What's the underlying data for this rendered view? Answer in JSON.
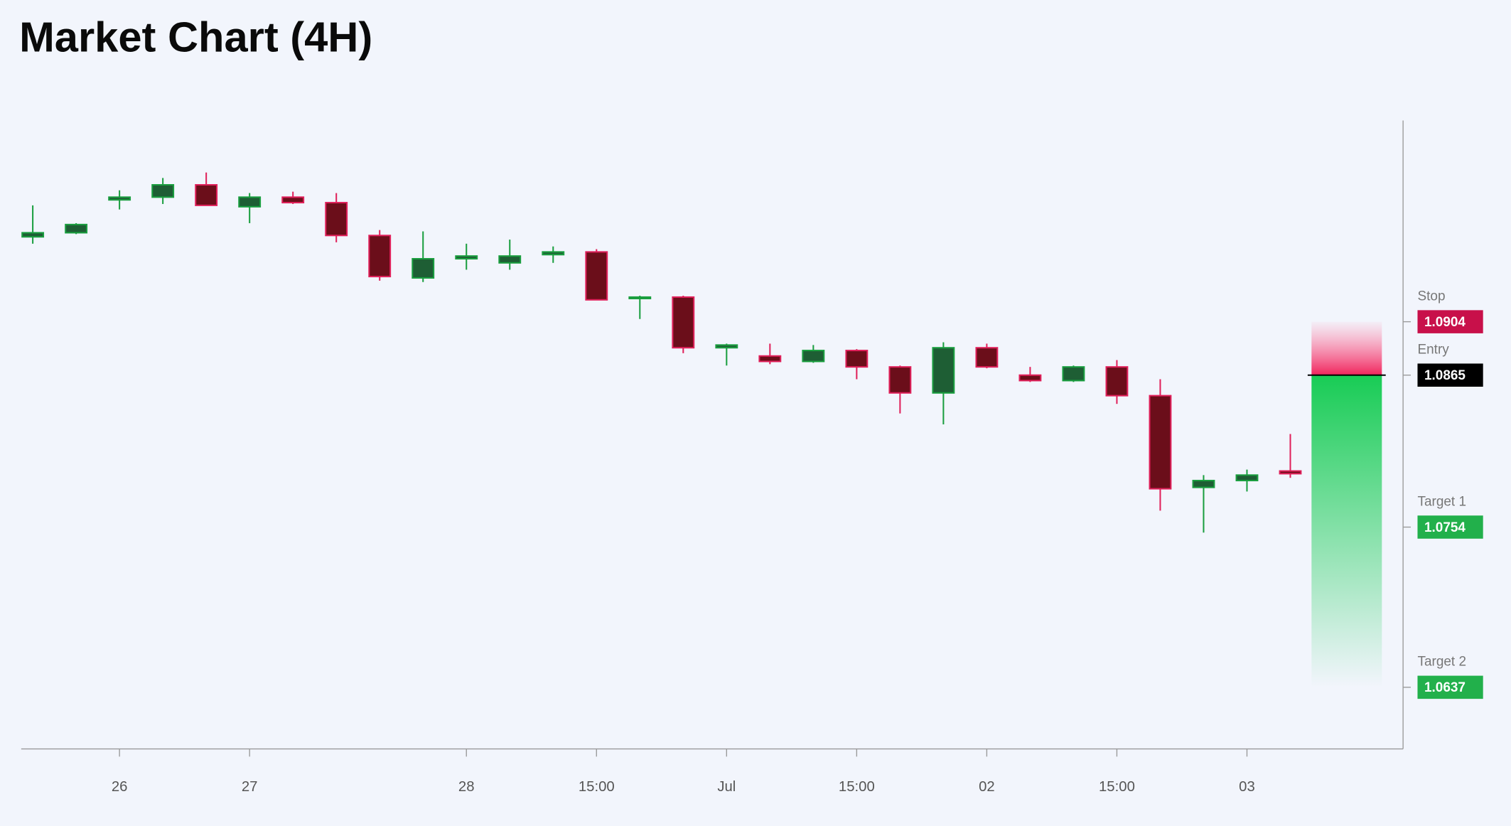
{
  "chart_data": {
    "type": "candlestick",
    "title": "Market Chart (4H)",
    "categories": [
      null,
      null,
      "26",
      null,
      null,
      "27",
      null,
      null,
      null,
      null,
      "28",
      null,
      null,
      "15:00",
      null,
      null,
      "Jul",
      null,
      null,
      "15:00",
      null,
      null,
      "02",
      null,
      null,
      "15:00",
      null,
      null,
      "03",
      null
    ],
    "open": [
      1.0966,
      1.0969,
      1.0993,
      1.0995,
      1.1004,
      1.0988,
      1.0995,
      1.0991,
      1.0967,
      1.0936,
      1.095,
      1.0947,
      1.0953,
      1.0955,
      1.0921,
      1.0922,
      1.0885,
      1.0879,
      1.0875,
      1.0883,
      1.0871,
      1.0852,
      1.0885,
      1.0865,
      1.0861,
      1.0871,
      1.085,
      1.0783,
      1.0788,
      1.0795
    ],
    "high": [
      1.0989,
      1.0976,
      1.1,
      1.1009,
      1.1013,
      1.0998,
      1.0999,
      1.0998,
      1.0971,
      1.097,
      1.0961,
      1.0964,
      1.0959,
      1.0957,
      1.0923,
      1.0923,
      1.0888,
      1.0888,
      1.0887,
      1.0884,
      1.0872,
      1.0889,
      1.0888,
      1.0871,
      1.0872,
      1.0876,
      1.0862,
      1.0792,
      1.0796,
      1.0822
    ],
    "low": [
      1.0961,
      1.0968,
      1.0986,
      1.099,
      1.0989,
      1.0976,
      1.099,
      1.0962,
      1.0934,
      1.0933,
      1.0942,
      1.0942,
      1.0947,
      1.092,
      1.0906,
      1.0881,
      1.0872,
      1.0873,
      1.0874,
      1.0862,
      1.0837,
      1.0829,
      1.087,
      1.086,
      1.086,
      1.0844,
      1.0766,
      1.075,
      1.078,
      1.079
    ],
    "close": [
      1.0969,
      1.0975,
      1.0995,
      1.1004,
      1.0989,
      1.0995,
      1.0991,
      1.0967,
      1.0937,
      1.095,
      1.0952,
      1.0952,
      1.0955,
      1.092,
      1.0922,
      1.0885,
      1.0887,
      1.0875,
      1.0883,
      1.0871,
      1.0852,
      1.0885,
      1.0871,
      1.0861,
      1.0871,
      1.085,
      1.0782,
      1.0788,
      1.0792,
      1.0793
    ],
    "up_color": "#1a9e3f",
    "up_fill": "#1e5e34",
    "down_color": "#e0205a",
    "down_fill": "#6b0e1a",
    "ylim": [
      1.0592,
      1.1051
    ],
    "levels": [
      {
        "name": "Stop",
        "value": 1.0904,
        "color": "#c8104a"
      },
      {
        "name": "Entry",
        "value": 1.0865,
        "color": "#000000"
      },
      {
        "name": "Target 1",
        "value": 1.0754,
        "color": "#22b04b"
      },
      {
        "name": "Target 2",
        "value": 1.0637,
        "color": "#22b04b"
      }
    ]
  }
}
